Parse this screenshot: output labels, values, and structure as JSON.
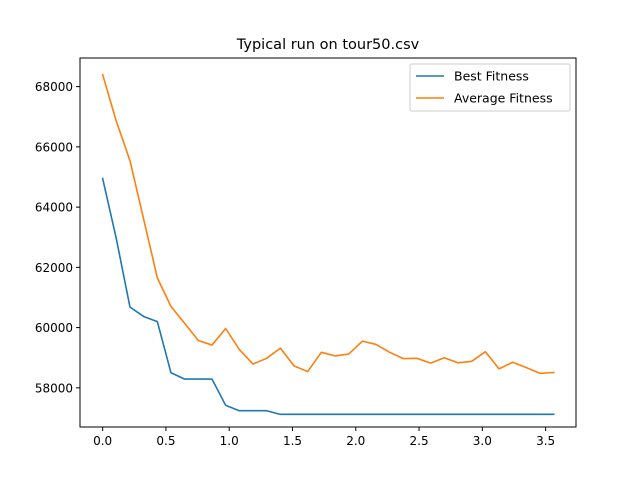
{
  "chart_data": {
    "type": "line",
    "title": "Typical run on tour50.csv",
    "xlabel": "",
    "ylabel": "",
    "xlim": [
      -0.179,
      3.74
    ],
    "ylim": [
      56700,
      68950
    ],
    "xticks": [
      0.0,
      0.5,
      1.0,
      1.5,
      2.0,
      2.5,
      3.0,
      3.5
    ],
    "xtick_labels": [
      "0.0",
      "0.5",
      "1.0",
      "1.5",
      "2.0",
      "2.5",
      "3.0",
      "3.5"
    ],
    "yticks": [
      58000,
      60000,
      62000,
      64000,
      66000,
      68000
    ],
    "ytick_labels": [
      "58000",
      "60000",
      "62000",
      "64000",
      "66000",
      "68000"
    ],
    "grid": false,
    "legend_position": "top-right",
    "x": [
      0.0,
      0.108,
      0.216,
      0.324,
      0.432,
      0.54,
      0.648,
      0.756,
      0.864,
      0.972,
      1.08,
      1.188,
      1.296,
      1.404,
      1.512,
      1.62,
      1.728,
      1.836,
      1.944,
      2.052,
      2.16,
      2.268,
      2.376,
      2.484,
      2.592,
      2.7,
      2.808,
      2.916,
      3.024,
      3.132,
      3.24,
      3.348,
      3.456,
      3.564
    ],
    "series": [
      {
        "name": "Best Fitness",
        "color": "#1f77b4",
        "values": [
          64950,
          62950,
          60680,
          60370,
          60200,
          58500,
          58290,
          58290,
          58290,
          57420,
          57240,
          57240,
          57240,
          57120,
          57120,
          57120,
          57120,
          57120,
          57120,
          57120,
          57120,
          57120,
          57120,
          57120,
          57120,
          57120,
          57120,
          57120,
          57120,
          57120,
          57120,
          57120,
          57120,
          57120
        ]
      },
      {
        "name": "Average Fitness",
        "color": "#ff7f0e",
        "values": [
          68400,
          66850,
          65540,
          63600,
          61650,
          60700,
          60140,
          59570,
          59420,
          59970,
          59270,
          58790,
          58980,
          59320,
          58730,
          58540,
          59180,
          59060,
          59120,
          59550,
          59440,
          59180,
          58970,
          58980,
          58820,
          59000,
          58830,
          58880,
          59200,
          58630,
          58850,
          58670,
          58480,
          58510
        ]
      }
    ]
  }
}
